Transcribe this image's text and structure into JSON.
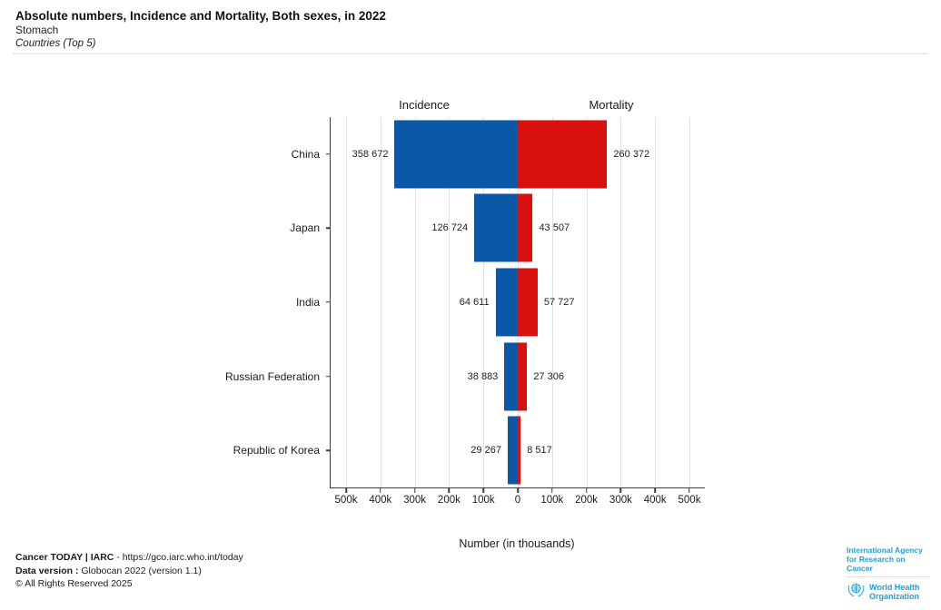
{
  "header": {
    "title": "Absolute numbers, Incidence and Mortality, Both sexes, in 2022",
    "subtitle": "Stomach",
    "scope_note": "Countries (Top 5)"
  },
  "chart_data": {
    "type": "bar",
    "variant": "diverging-horizontal",
    "left_header": "Incidence",
    "right_header": "Mortality",
    "categories": [
      "China",
      "Japan",
      "India",
      "Russian Federation",
      "Republic of Korea"
    ],
    "series": [
      {
        "name": "Incidence",
        "side": "left",
        "color": "#0B59A6",
        "values": [
          358672,
          126724,
          64611,
          38883,
          29267
        ],
        "labels": [
          "358 672",
          "126 724",
          "64 611",
          "38 883",
          "29 267"
        ]
      },
      {
        "name": "Mortality",
        "side": "right",
        "color": "#D8100E",
        "values": [
          260372,
          43507,
          57727,
          27306,
          8517
        ],
        "labels": [
          "260 372",
          "43 507",
          "57 727",
          "27 306",
          "8 517"
        ]
      }
    ],
    "x_ticks": [
      {
        "value": -500000,
        "label": "500k"
      },
      {
        "value": -400000,
        "label": "400k"
      },
      {
        "value": -300000,
        "label": "300k"
      },
      {
        "value": -200000,
        "label": "200k"
      },
      {
        "value": -100000,
        "label": "100k"
      },
      {
        "value": 0,
        "label": "0"
      },
      {
        "value": 100000,
        "label": "100k"
      },
      {
        "value": 200000,
        "label": "200k"
      },
      {
        "value": 300000,
        "label": "300k"
      },
      {
        "value": 400000,
        "label": "400k"
      },
      {
        "value": 500000,
        "label": "500k"
      }
    ],
    "axis_half_limit": 545000,
    "xlabel": "Number (in thousands)",
    "grid": true,
    "legend_position": "none"
  },
  "footer": {
    "line1_bold": "Cancer TODAY | IARC",
    "line1_rest": " - https://gco.iarc.who.int/today",
    "line2_bold": "Data version :",
    "line2_rest": " Globocan 2022 (version 1.1)",
    "line3": "© All Rights Reserved 2025"
  },
  "logos": {
    "iarc_line1": "International Agency",
    "iarc_line2": "for Research on Cancer",
    "who_line1": "World Health",
    "who_line2": "Organization",
    "brand_blue": "#1EA0DC"
  }
}
